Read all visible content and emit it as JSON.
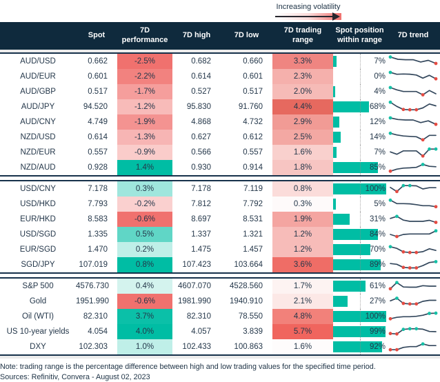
{
  "legend": {
    "label": "Increasing volatility"
  },
  "footer": {
    "note": "Note: trading range is the percentage difference between high and low trading values for the specified time period.",
    "sources": "Sources: Refinitiv, Convera - August 02, 2023"
  },
  "colors": {
    "header_bg": "#0f2a3d",
    "navy_line": "#16314a",
    "text": "#24374a",
    "bar_teal": "#00bda4",
    "perf_red_max": "#f0716e",
    "spark_line": "#33475c",
    "dot_teal": "#14c0a6",
    "dot_red": "#e54b42",
    "guide": "#8d8d8d"
  },
  "chart_data": {
    "type": "table",
    "columns": [
      "",
      "Spot",
      "7D performance",
      "7D high",
      "7D low",
      "7D trading range",
      "Spot position within range",
      "7D trend"
    ],
    "legend_note": "Increasing volatility",
    "groups": [
      [
        {
          "label": "AUD/USD",
          "spot": "0.662",
          "perf": "-2.5%",
          "perf_bg": "#f0716e",
          "high": "0.682",
          "low": "0.660",
          "range": "3.3%",
          "range_bg": "#ef8581",
          "pos": 7,
          "pos_label": "7%",
          "trend": {
            "v": [
              0.92,
              0.7,
              0.66,
              0.66,
              0.44,
              0.6,
              0.3
            ],
            "teal": [
              0
            ],
            "red": [
              6
            ]
          }
        },
        {
          "label": "AUD/EUR",
          "spot": "0.601",
          "perf": "-2.2%",
          "perf_bg": "#f2827f",
          "high": "0.614",
          "low": "0.601",
          "range": "2.3%",
          "range_bg": "#f5b0ac",
          "pos": 0,
          "pos_label": "0%",
          "trend": {
            "v": [
              0.9,
              0.72,
              0.75,
              0.73,
              0.65,
              0.35,
              0.62,
              0.28
            ],
            "teal": [
              0
            ],
            "red": [
              7
            ]
          }
        },
        {
          "label": "AUD/GBP",
          "spot": "0.517",
          "perf": "-1.7%",
          "perf_bg": "#f59e9c",
          "high": "0.527",
          "low": "0.517",
          "range": "2.0%",
          "range_bg": "#f6bbb7",
          "pos": 4,
          "pos_label": "4%",
          "trend": {
            "v": [
              0.9,
              0.68,
              0.52,
              0.52,
              0.52,
              0.2,
              0.62,
              0.3
            ],
            "teal": [
              0
            ],
            "red": [
              5
            ]
          }
        },
        {
          "label": "AUD/JPY",
          "spot": "94.520",
          "perf": "-1.2%",
          "perf_bg": "#f8bbb9",
          "high": "95.830",
          "low": "91.760",
          "range": "4.4%",
          "range_bg": "#e6695f",
          "pos": 68,
          "pos_label": "68%",
          "trend": {
            "v": [
              0.95,
              0.55,
              0.25,
              0.22,
              0.22,
              0.4,
              0.78,
              0.6
            ],
            "teal": [
              0
            ],
            "red": [
              2,
              3,
              4
            ]
          }
        },
        {
          "label": "AUD/CNY",
          "spot": "4.749",
          "perf": "-1.9%",
          "perf_bg": "#f49391",
          "high": "4.868",
          "low": "4.732",
          "range": "2.9%",
          "range_bg": "#f19b95",
          "pos": 12,
          "pos_label": "12%",
          "trend": {
            "v": [
              0.9,
              0.75,
              0.7,
              0.7,
              0.45,
              0.62,
              0.28
            ],
            "teal": [
              0
            ],
            "red": [
              6
            ]
          }
        },
        {
          "label": "NZD/USD",
          "spot": "0.614",
          "perf": "-1.3%",
          "perf_bg": "#f7b5b4",
          "high": "0.627",
          "low": "0.612",
          "range": "2.5%",
          "range_bg": "#f3a8a3",
          "pos": 14,
          "pos_label": "14%",
          "trend": {
            "v": [
              0.88,
              0.72,
              0.62,
              0.58,
              0.55,
              0.25,
              0.68,
              0.68
            ],
            "teal": [
              0
            ],
            "red": [
              5
            ]
          }
        },
        {
          "label": "NZD/EUR",
          "spot": "0.557",
          "perf": "-0.9%",
          "perf_bg": "#faccca",
          "high": "0.566",
          "low": "0.557",
          "range": "1.6%",
          "range_bg": "#f9d0cd",
          "pos": 7,
          "pos_label": "7%",
          "trend": {
            "v": [
              0.55,
              0.32,
              0.65,
              0.65,
              0.65,
              0.15,
              0.82,
              0.82
            ],
            "teal": [
              6,
              7
            ],
            "red": [
              5
            ]
          }
        },
        {
          "label": "NZD/AUD",
          "spot": "0.928",
          "perf": "1.4%",
          "perf_bg": "#00bda4",
          "high": "0.930",
          "low": "0.914",
          "range": "1.8%",
          "range_bg": "#f7c5c2",
          "pos": 85,
          "pos_label": "85%",
          "trend": {
            "v": [
              0.15,
              0.35,
              0.45,
              0.47,
              0.52,
              0.8,
              0.62,
              0.58
            ],
            "teal": [
              5
            ],
            "red": [
              0
            ]
          }
        }
      ],
      [
        {
          "label": "USD/CNY",
          "spot": "7.178",
          "perf": "0.3%",
          "perf_bg": "#9fe6dd",
          "high": "7.178",
          "low": "7.119",
          "range": "0.8%",
          "range_bg": "#fbdcda",
          "pos": 100,
          "pos_label": "100%",
          "trend": {
            "v": [
              0.65,
              0.25,
              0.82,
              0.82,
              0.8,
              0.5,
              0.62,
              0.62
            ],
            "teal": [
              2,
              3
            ],
            "red": [
              1
            ]
          }
        },
        {
          "label": "USD/HKD",
          "spot": "7.793",
          "perf": "-0.2%",
          "perf_bg": "#fad0cf",
          "high": "7.812",
          "low": "7.792",
          "range": "0.3%",
          "range_bg": "#fefafa",
          "pos": 5,
          "pos_label": "5%",
          "trend": {
            "v": [
              0.88,
              0.55,
              0.55,
              0.53,
              0.45,
              0.35,
              0.35,
              0.25
            ],
            "teal": [
              0
            ],
            "red": [
              7
            ]
          }
        },
        {
          "label": "EUR/HKD",
          "spot": "8.583",
          "perf": "-0.6%",
          "perf_bg": "#f0716e",
          "high": "8.697",
          "low": "8.531",
          "range": "1.9%",
          "range_bg": "#f4a5a1",
          "pos": 31,
          "pos_label": "31%",
          "trend": {
            "v": [
              0.58,
              0.78,
              0.42,
              0.3,
              0.3,
              0.3,
              0.4,
              0.2
            ],
            "teal": [
              1
            ],
            "red": [
              7
            ]
          }
        },
        {
          "label": "USD/SGD",
          "spot": "1.335",
          "perf": "0.5%",
          "perf_bg": "#60d6c6",
          "high": "1.337",
          "low": "1.321",
          "range": "1.2%",
          "range_bg": "#f7bcb9",
          "pos": 84,
          "pos_label": "84%",
          "trend": {
            "v": [
              0.5,
              0.3,
              0.5,
              0.55,
              0.55,
              0.55,
              0.55,
              0.85
            ],
            "teal": [
              7
            ],
            "red": [
              1
            ]
          }
        },
        {
          "label": "EUR/SGD",
          "spot": "1.470",
          "perf": "0.2%",
          "perf_bg": "#bfefe8",
          "high": "1.475",
          "low": "1.457",
          "range": "1.2%",
          "range_bg": "#f7bcb9",
          "pos": 70,
          "pos_label": "70%",
          "trend": {
            "v": [
              0.78,
              0.62,
              0.28,
              0.22,
              0.22,
              0.3,
              0.58,
              0.42
            ],
            "teal": [
              0
            ],
            "red": [
              2,
              3,
              4
            ]
          }
        },
        {
          "label": "SGD/JPY",
          "spot": "107.019",
          "perf": "0.8%",
          "perf_bg": "#00bda4",
          "high": "107.423",
          "low": "103.664",
          "range": "3.6%",
          "range_bg": "#ef6d66",
          "pos": 89,
          "pos_label": "89%",
          "trend": {
            "v": [
              0.62,
              0.55,
              0.25,
              0.2,
              0.2,
              0.42,
              0.72,
              0.8
            ],
            "teal": [
              7
            ],
            "red": [
              2,
              3,
              4
            ]
          }
        }
      ],
      [
        {
          "label": "S&P 500",
          "spot": "4576.730",
          "perf": "0.4%",
          "perf_bg": "#d4f3ee",
          "high": "4607.070",
          "low": "4528.560",
          "range": "1.7%",
          "range_bg": "#fdf3f2",
          "pos": 61,
          "pos_label": "61%",
          "trend": {
            "v": [
              0.25,
              0.85,
              0.42,
              0.4,
              0.4,
              0.55,
              0.5,
              0.5
            ],
            "teal": [
              1
            ],
            "red": [
              0
            ]
          }
        },
        {
          "label": "Gold",
          "spot": "1951.990",
          "perf": "-0.6%",
          "perf_bg": "#f0716e",
          "high": "1981.990",
          "low": "1940.910",
          "range": "2.1%",
          "range_bg": "#fce8e6",
          "pos": 27,
          "pos_label": "27%",
          "trend": {
            "v": [
              0.55,
              0.8,
              0.3,
              0.25,
              0.25,
              0.5,
              0.6,
              0.6
            ],
            "teal": [
              1
            ],
            "red": [
              2,
              3,
              4
            ]
          }
        },
        {
          "label": "Oil (WTI)",
          "spot": "82.310",
          "perf": "3.7%",
          "perf_bg": "#0bc0a8",
          "high": "82.310",
          "low": "78.550",
          "range": "4.8%",
          "range_bg": "#f2817a",
          "pos": 100,
          "pos_label": "100%",
          "trend": {
            "v": [
              0.28,
              0.42,
              0.48,
              0.48,
              0.52,
              0.62,
              0.8,
              0.82
            ],
            "teal": [
              6,
              7
            ],
            "red": [
              0
            ]
          }
        },
        {
          "label": "US 10-year yields",
          "spot": "4.054",
          "perf": "4.0%",
          "perf_bg": "#00bda4",
          "high": "4.057",
          "low": "3.839",
          "range": "5.7%",
          "range_bg": "#f0655e",
          "pos": 99,
          "pos_label": "99%",
          "trend": {
            "v": [
              0.32,
              0.28,
              0.72,
              0.78,
              0.78,
              0.74,
              0.52,
              0.5
            ],
            "teal": [
              2,
              3,
              4
            ],
            "red": [
              0,
              1
            ]
          }
        },
        {
          "label": "DXY",
          "spot": "102.303",
          "perf": "1.0%",
          "perf_bg": "#bfefe8",
          "high": "102.433",
          "low": "100.863",
          "range": "1.6%",
          "range_bg": "#fefcfc",
          "pos": 92,
          "pos_label": "92%",
          "trend": {
            "v": [
              0.22,
              0.22,
              0.45,
              0.52,
              0.52,
              0.78,
              0.62,
              0.62
            ],
            "teal": [
              5
            ],
            "red": [
              0,
              1
            ]
          }
        }
      ]
    ]
  }
}
